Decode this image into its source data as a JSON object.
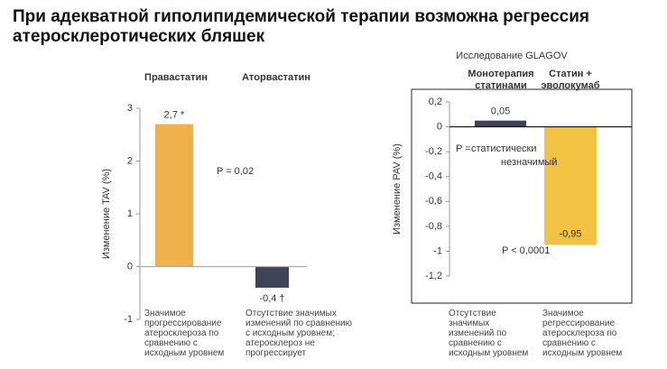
{
  "title": "При адекватной гиполипидемической терапии возможна регрессия атеросклеротических бляшек",
  "chart_data": [
    {
      "type": "bar",
      "categories": [
        "Правастатин",
        "Атoрвастатин"
      ],
      "values": [
        2.7,
        -0.4
      ],
      "value_labels": [
        "2,7 *",
        "-0,4 †"
      ],
      "colors": [
        "#f0b04c",
        "#3e4456"
      ],
      "y_label": "Изменение TAV (%)",
      "ylim": [
        -1,
        3
      ],
      "yticks": [
        3,
        2,
        1,
        0,
        -1
      ],
      "annotations": [
        "P = 0,02"
      ],
      "captions": [
        "Значимое прогрессирование атеросклероза по сравнению с исходным уровнем",
        "Отсутствие значимых изменений по сравнению с исходным уровнем; атеросклероз не прогрессирует"
      ]
    },
    {
      "type": "bar",
      "title": "Исследование GLAGOV",
      "categories": [
        "Монотерапия статинами",
        "Статин + эволокумаб"
      ],
      "values": [
        0.05,
        -0.95
      ],
      "value_labels": [
        "0,05",
        "-0,95"
      ],
      "colors": [
        "#3e4456",
        "#f2c343"
      ],
      "y_label": "Изменение PAV (%)",
      "ylim": [
        -1.2,
        0.2
      ],
      "yticks": [
        {
          "value": 0.2,
          "label": "0,2"
        },
        0,
        {
          "value": -0.2,
          "label": "-0,2"
        },
        {
          "value": -0.4,
          "label": "-0,4"
        },
        {
          "value": -0.6,
          "label": "-0,6"
        },
        {
          "value": -0.8,
          "label": "-0,8"
        },
        -1,
        {
          "value": -1.2,
          "label": "-1,2"
        }
      ],
      "annotations": [
        "P =",
        "статистически",
        "незначимый",
        "P < 0,0001"
      ],
      "captions": [
        "Отсутствие значимых изменений по сравнению с исходным уровнем",
        "Значимое регрессирование атеросклероза по сравнению с исходным уровнем"
      ]
    }
  ]
}
